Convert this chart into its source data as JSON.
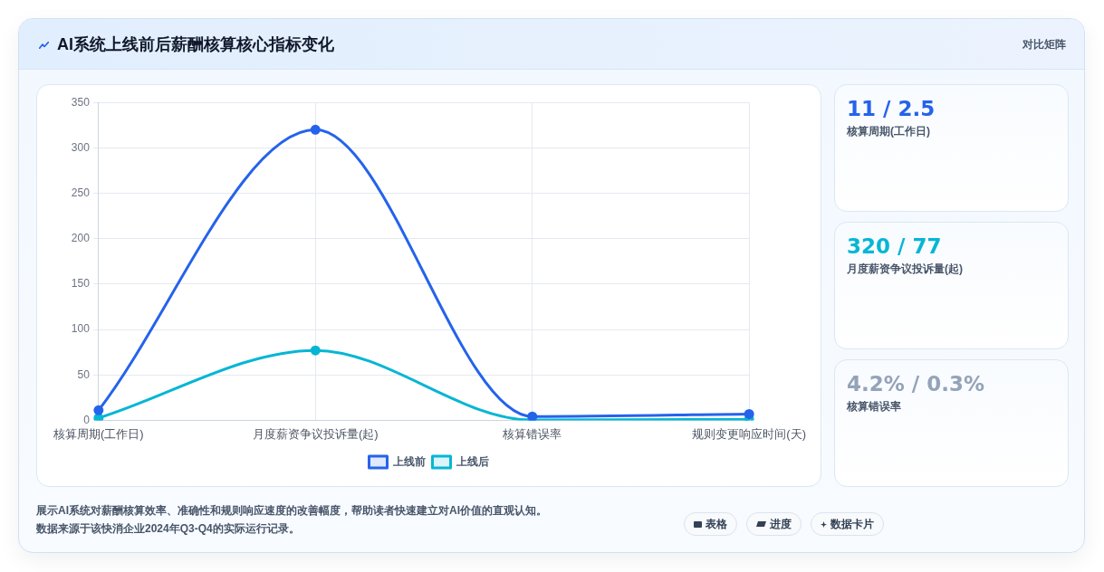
{
  "chart_data": {
    "type": "line",
    "title": "AI系统上线前后薪酬核算核心指标变化",
    "categories": [
      "核算周期(工作日)",
      "月度薪资争议投诉量(起)",
      "核算错误率",
      "规则变更响应时间(天)"
    ],
    "series": [
      {
        "name": "上线前",
        "color": "#2563eb",
        "values": [
          11,
          320,
          4.2,
          7
        ]
      },
      {
        "name": "上线后",
        "color": "#06b6d4",
        "values": [
          2.5,
          77,
          0.3,
          1
        ]
      }
    ],
    "ylim": [
      0,
      350
    ],
    "yticks": [
      0,
      50,
      100,
      150,
      200,
      250,
      300,
      350
    ],
    "grid": true,
    "legend": "bottom",
    "marker": "circle",
    "line_style": "solid",
    "annotations": [
      "对比矩阵",
      "11 / 2.5",
      "核算周期(工作日)",
      "320 / 77",
      "月度薪资争议投诉量(起)",
      "4.2% / 0.3%",
      "核算错误率",
      "展示AI系统对薪酬核算效率、准确性和规则响应速度的改善幅度，帮助读者快速建立对AI价值的直观认知。",
      "数据来源于该快消企业2024年Q3-Q4的实际运行记录。",
      "表格",
      "进度",
      "数据卡片"
    ]
  }
}
